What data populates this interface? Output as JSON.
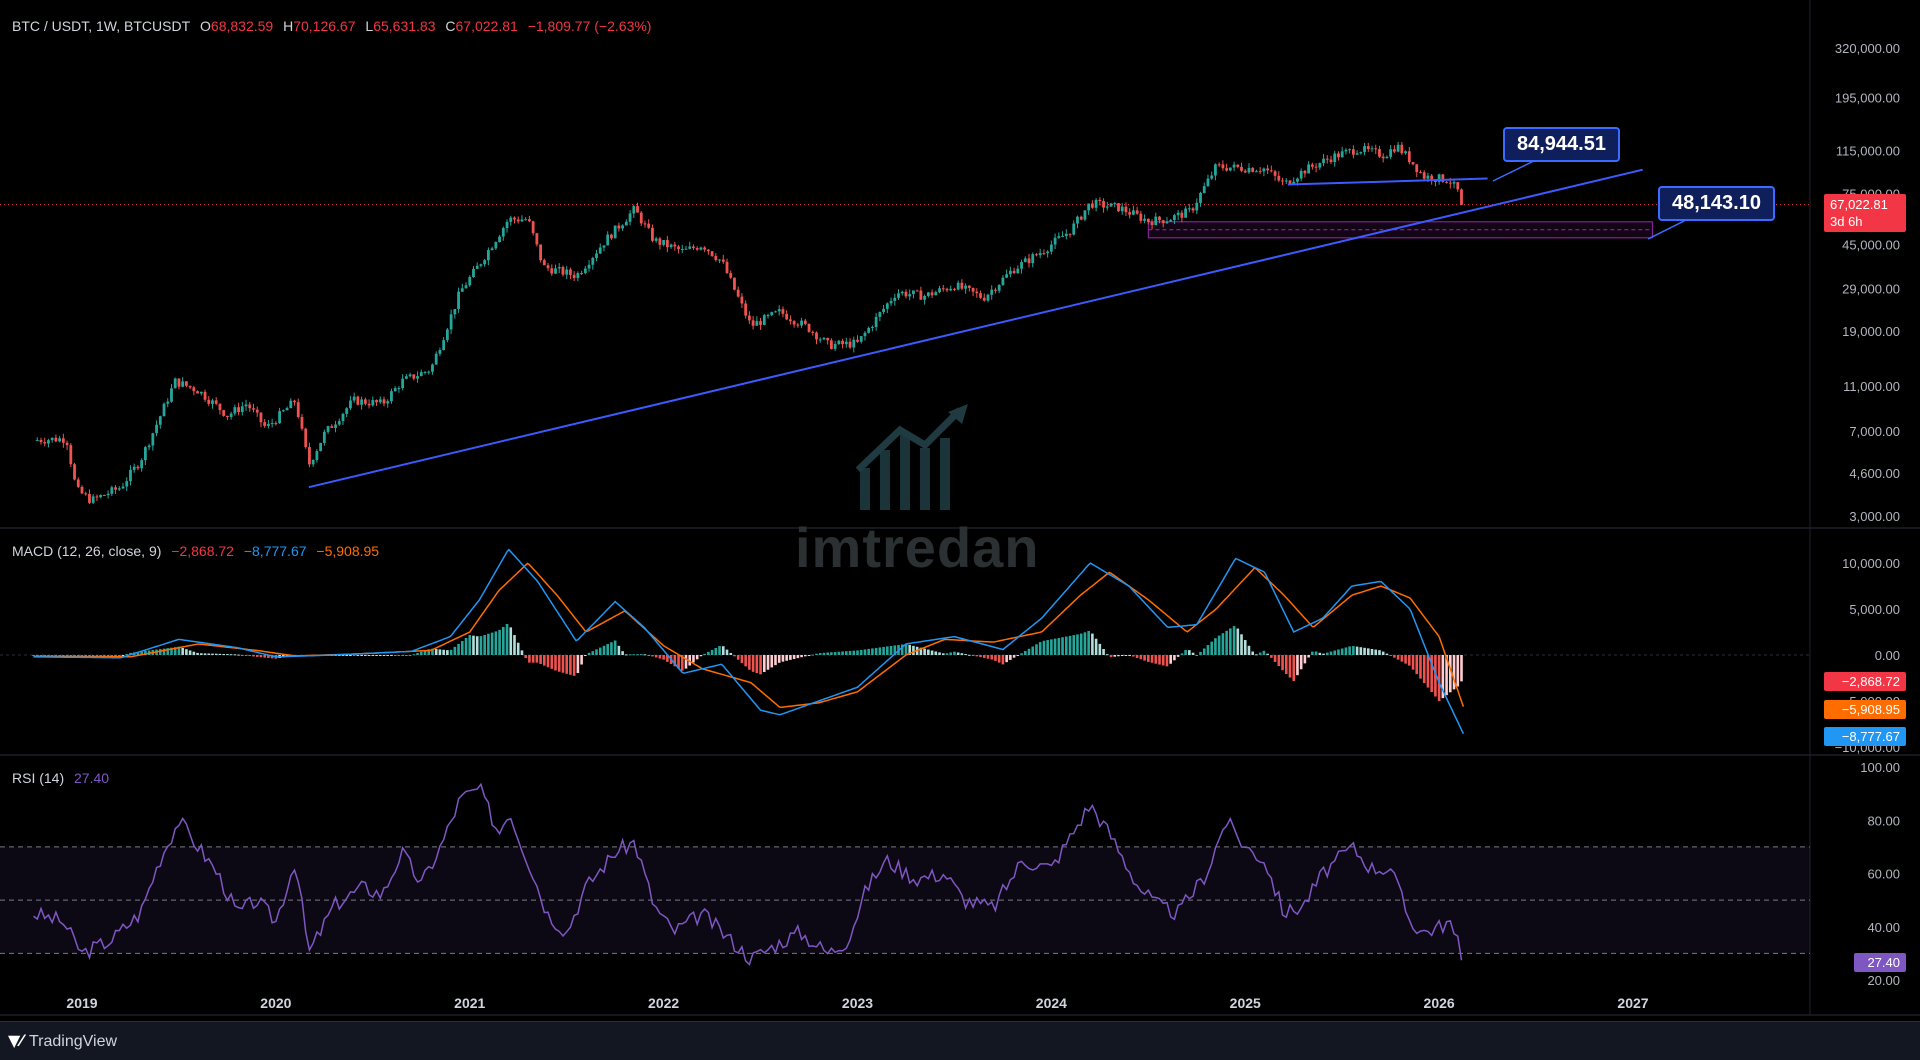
{
  "header": {
    "symbol": "BTC / USDT, 1W, BTCUSDT",
    "open_label": "O",
    "open": "68,832.59",
    "high_label": "H",
    "high": "70,126.67",
    "low_label": "L",
    "low": "65,631.83",
    "close_label": "C",
    "close": "67,022.81",
    "change": "−1,809.77 (−2.63%)"
  },
  "callouts": {
    "upper": "84,944.51",
    "lower": "48,143.10"
  },
  "last_price": {
    "value": "67,022.81",
    "countdown": "3d 6h",
    "color": "#f23645"
  },
  "macd": {
    "title": "MACD (12, 26, close, 9)",
    "hist": "−2,868.72",
    "macd": "−8,777.67",
    "signal": "−5,908.95",
    "colors": {
      "macd": "#2196f3",
      "signal": "#ff6d00",
      "hist_up": "#26a69a",
      "hist_down": "#ef5350"
    }
  },
  "rsi": {
    "title": "RSI (14)",
    "value": "27.40",
    "color": "#7e57c2"
  },
  "watermark": "imtredan",
  "footer": {
    "brand": "TradingView"
  },
  "chart_data": [
    {
      "type": "candlestick",
      "title": "BTC / USDT, 1W, BTCUSDT",
      "scale": "log",
      "y_ticks": [
        "320,000.00",
        "195,000.00",
        "115,000.00",
        "75,000.00",
        "45,000.00",
        "29,000.00",
        "19,000.00",
        "11,000.00",
        "7,000.00",
        "4,600.00",
        "3,000.00"
      ],
      "x_ticks": [
        "2019",
        "2020",
        "2021",
        "2022",
        "2023",
        "2024",
        "2025",
        "2026",
        "2027"
      ],
      "price_path": [
        [
          2018.75,
          6400
        ],
        [
          2018.92,
          6500
        ],
        [
          2018.97,
          3900
        ],
        [
          2019.05,
          3500
        ],
        [
          2019.2,
          4000
        ],
        [
          2019.3,
          5200
        ],
        [
          2019.4,
          8000
        ],
        [
          2019.48,
          11500
        ],
        [
          2019.6,
          10500
        ],
        [
          2019.75,
          8200
        ],
        [
          2019.85,
          9200
        ],
        [
          2019.95,
          7200
        ],
        [
          2020.1,
          9500
        ],
        [
          2020.17,
          5000
        ],
        [
          2020.25,
          6800
        ],
        [
          2020.4,
          9500
        ],
        [
          2020.55,
          9200
        ],
        [
          2020.65,
          11500
        ],
        [
          2020.8,
          13000
        ],
        [
          2020.95,
          28000
        ],
        [
          2021.05,
          37000
        ],
        [
          2021.2,
          58000
        ],
        [
          2021.3,
          58000
        ],
        [
          2021.38,
          36000
        ],
        [
          2021.55,
          33000
        ],
        [
          2021.7,
          47000
        ],
        [
          2021.85,
          64000
        ],
        [
          2021.95,
          47000
        ],
        [
          2022.1,
          42000
        ],
        [
          2022.2,
          45000
        ],
        [
          2022.3,
          38000
        ],
        [
          2022.45,
          20000
        ],
        [
          2022.6,
          23000
        ],
        [
          2022.75,
          19500
        ],
        [
          2022.85,
          16500
        ],
        [
          2023.0,
          16800
        ],
        [
          2023.2,
          28000
        ],
        [
          2023.35,
          27000
        ],
        [
          2023.5,
          30000
        ],
        [
          2023.65,
          26500
        ],
        [
          2023.8,
          35000
        ],
        [
          2023.95,
          42000
        ],
        [
          2024.1,
          52000
        ],
        [
          2024.2,
          68000
        ],
        [
          2024.35,
          65000
        ],
        [
          2024.5,
          57000
        ],
        [
          2024.6,
          58000
        ],
        [
          2024.72,
          63000
        ],
        [
          2024.85,
          98000
        ],
        [
          2024.95,
          97000
        ],
        [
          2025.1,
          96000
        ],
        [
          2025.2,
          82000
        ],
        [
          2025.3,
          94000
        ],
        [
          2025.45,
          108000
        ],
        [
          2025.58,
          117000
        ],
        [
          2025.72,
          110000
        ],
        [
          2025.78,
          121000
        ],
        [
          2025.85,
          105000
        ],
        [
          2025.92,
          89000
        ],
        [
          2026.0,
          87000
        ],
        [
          2026.05,
          86000
        ],
        [
          2026.1,
          76000
        ],
        [
          2026.13,
          67022.81
        ]
      ],
      "trendlines": [
        {
          "from": [
            2020.17,
            4000
          ],
          "to": [
            2027.05,
            95000
          ]
        },
        {
          "from": [
            2025.22,
            82000
          ],
          "to": [
            2026.25,
            87000
          ]
        }
      ],
      "zone": {
        "x": [
          2024.5,
          2027.1
        ],
        "y": [
          48143.1,
          56500
        ]
      },
      "last": 67022.81
    },
    {
      "type": "macd",
      "y_ticks": [
        "10,000.00",
        "5,000.00",
        "0.00",
        "−5,000.00",
        "−10,000.00"
      ],
      "macd_path": [
        [
          2018.75,
          -200
        ],
        [
          2019.2,
          -300
        ],
        [
          2019.5,
          1700
        ],
        [
          2019.8,
          800
        ],
        [
          2020.0,
          -200
        ],
        [
          2020.3,
          0
        ],
        [
          2020.7,
          400
        ],
        [
          2020.9,
          2000
        ],
        [
          2021.05,
          6000
        ],
        [
          2021.2,
          11500
        ],
        [
          2021.35,
          8000
        ],
        [
          2021.55,
          1500
        ],
        [
          2021.75,
          5800
        ],
        [
          2021.9,
          3000
        ],
        [
          2022.1,
          -2000
        ],
        [
          2022.3,
          -1000
        ],
        [
          2022.5,
          -6000
        ],
        [
          2022.6,
          -6500
        ],
        [
          2022.8,
          -5000
        ],
        [
          2023.0,
          -3500
        ],
        [
          2023.25,
          1200
        ],
        [
          2023.5,
          2000
        ],
        [
          2023.75,
          600
        ],
        [
          2023.95,
          4000
        ],
        [
          2024.2,
          10000
        ],
        [
          2024.4,
          7500
        ],
        [
          2024.6,
          3000
        ],
        [
          2024.75,
          3300
        ],
        [
          2024.95,
          10500
        ],
        [
          2025.1,
          9000
        ],
        [
          2025.25,
          2500
        ],
        [
          2025.4,
          4000
        ],
        [
          2025.55,
          7500
        ],
        [
          2025.7,
          8000
        ],
        [
          2025.85,
          5000
        ],
        [
          2026.0,
          -3000
        ],
        [
          2026.13,
          -8777.67
        ]
      ],
      "signal_path": [
        [
          2018.75,
          -150
        ],
        [
          2019.25,
          -200
        ],
        [
          2019.6,
          1200
        ],
        [
          2019.9,
          500
        ],
        [
          2020.1,
          -100
        ],
        [
          2020.4,
          100
        ],
        [
          2020.8,
          500
        ],
        [
          2021.0,
          2500
        ],
        [
          2021.15,
          7000
        ],
        [
          2021.3,
          10000
        ],
        [
          2021.45,
          6500
        ],
        [
          2021.6,
          2500
        ],
        [
          2021.8,
          4800
        ],
        [
          2022.0,
          1000
        ],
        [
          2022.2,
          -1500
        ],
        [
          2022.45,
          -3000
        ],
        [
          2022.6,
          -5700
        ],
        [
          2022.8,
          -5200
        ],
        [
          2023.0,
          -4000
        ],
        [
          2023.25,
          0
        ],
        [
          2023.45,
          1700
        ],
        [
          2023.7,
          1400
        ],
        [
          2023.95,
          2500
        ],
        [
          2024.15,
          6500
        ],
        [
          2024.3,
          9000
        ],
        [
          2024.5,
          6000
        ],
        [
          2024.7,
          2500
        ],
        [
          2024.85,
          5000
        ],
        [
          2025.05,
          9500
        ],
        [
          2025.2,
          6500
        ],
        [
          2025.35,
          3000
        ],
        [
          2025.55,
          6500
        ],
        [
          2025.7,
          7500
        ],
        [
          2025.85,
          6200
        ],
        [
          2026.0,
          2000
        ],
        [
          2026.13,
          -5908.95
        ]
      ],
      "hist_last": -2868.72
    },
    {
      "type": "line",
      "name": "RSI (14)",
      "y_ticks": [
        "100.00",
        "80.00",
        "60.00",
        "40.00",
        "20.00"
      ],
      "bands": [
        70,
        50,
        30
      ],
      "rsi_path": [
        [
          2018.75,
          45
        ],
        [
          2018.9,
          42
        ],
        [
          2019.0,
          30
        ],
        [
          2019.15,
          35
        ],
        [
          2019.3,
          45
        ],
        [
          2019.4,
          65
        ],
        [
          2019.5,
          80
        ],
        [
          2019.6,
          70
        ],
        [
          2019.7,
          60
        ],
        [
          2019.8,
          45
        ],
        [
          2019.9,
          50
        ],
        [
          2020.0,
          42
        ],
        [
          2020.1,
          65
        ],
        [
          2020.17,
          30
        ],
        [
          2020.3,
          48
        ],
        [
          2020.45,
          55
        ],
        [
          2020.55,
          52
        ],
        [
          2020.65,
          68
        ],
        [
          2020.75,
          56
        ],
        [
          2020.85,
          70
        ],
        [
          2020.95,
          88
        ],
        [
          2021.05,
          92
        ],
        [
          2021.15,
          75
        ],
        [
          2021.2,
          84
        ],
        [
          2021.3,
          65
        ],
        [
          2021.4,
          45
        ],
        [
          2021.5,
          38
        ],
        [
          2021.6,
          55
        ],
        [
          2021.75,
          68
        ],
        [
          2021.85,
          72
        ],
        [
          2021.95,
          48
        ],
        [
          2022.05,
          38
        ],
        [
          2022.2,
          45
        ],
        [
          2022.3,
          38
        ],
        [
          2022.45,
          28
        ],
        [
          2022.55,
          32
        ],
        [
          2022.7,
          38
        ],
        [
          2022.85,
          30
        ],
        [
          2022.95,
          35
        ],
        [
          2023.05,
          55
        ],
        [
          2023.15,
          65
        ],
        [
          2023.3,
          58
        ],
        [
          2023.45,
          60
        ],
        [
          2023.55,
          50
        ],
        [
          2023.7,
          47
        ],
        [
          2023.85,
          65
        ],
        [
          2024.0,
          62
        ],
        [
          2024.1,
          74
        ],
        [
          2024.2,
          86
        ],
        [
          2024.3,
          75
        ],
        [
          2024.45,
          55
        ],
        [
          2024.55,
          48
        ],
        [
          2024.65,
          45
        ],
        [
          2024.8,
          60
        ],
        [
          2024.9,
          80
        ],
        [
          2025.0,
          70
        ],
        [
          2025.1,
          65
        ],
        [
          2025.2,
          45
        ],
        [
          2025.3,
          48
        ],
        [
          2025.4,
          60
        ],
        [
          2025.55,
          70
        ],
        [
          2025.65,
          62
        ],
        [
          2025.75,
          62
        ],
        [
          2025.85,
          42
        ],
        [
          2025.92,
          38
        ],
        [
          2026.0,
          40
        ],
        [
          2026.05,
          42
        ],
        [
          2026.1,
          33
        ],
        [
          2026.13,
          27.4
        ]
      ],
      "last": 27.4
    }
  ]
}
